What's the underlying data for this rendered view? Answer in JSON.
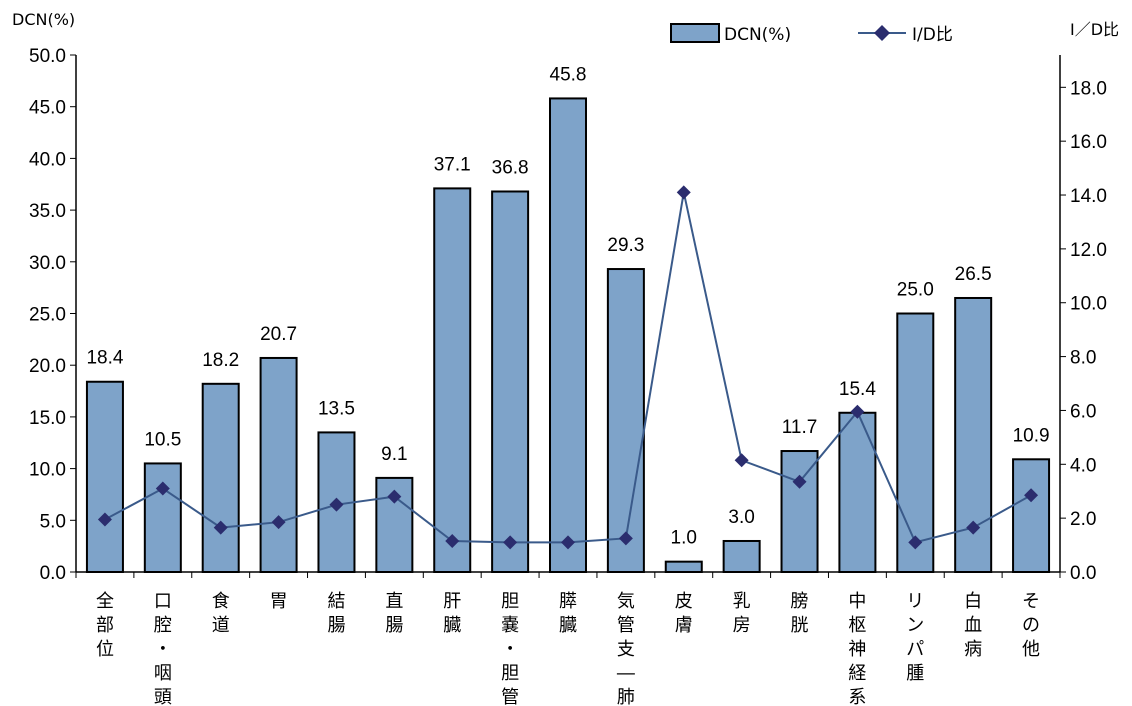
{
  "chart_data": {
    "type": "bar",
    "ylabel": "DCN(%)",
    "y2label": "I／D比",
    "ylim": [
      0,
      50
    ],
    "yticks": [
      "0.0",
      "5.0",
      "10.0",
      "15.0",
      "20.0",
      "25.0",
      "30.0",
      "35.0",
      "40.0",
      "45.0",
      "50.0"
    ],
    "y2lim": [
      0,
      19.2
    ],
    "y2ticks": [
      "0.0",
      "2.0",
      "4.0",
      "6.0",
      "8.0",
      "10.0",
      "12.0",
      "14.0",
      "16.0",
      "18.0"
    ],
    "categories": [
      "全部位",
      "口腔・咽頭",
      "食道",
      "胃",
      "結腸",
      "直腸",
      "肝臓",
      "胆嚢・胆管",
      "膵臓",
      "気管支―肺",
      "皮膚",
      "乳房",
      "膀胱",
      "中枢神経系",
      "リンパ腫",
      "白血病",
      "その他"
    ],
    "series": [
      {
        "name": "DCN(%)",
        "type": "bar",
        "axis": "left",
        "color": "#7ea3c9",
        "values": [
          18.4,
          10.5,
          18.2,
          20.7,
          13.5,
          9.1,
          37.1,
          36.8,
          45.8,
          29.3,
          1.0,
          3.0,
          11.7,
          15.4,
          25.0,
          26.5,
          10.9
        ],
        "labels": [
          "18.4",
          "10.5",
          "18.2",
          "20.7",
          "13.5",
          "9.1",
          "37.1",
          "36.8",
          "45.8",
          "29.3",
          "1.0",
          "3.0",
          "11.7",
          "15.4",
          "25.0",
          "26.5",
          "10.9"
        ]
      },
      {
        "name": "I/D比",
        "type": "line",
        "axis": "right",
        "color": "#3a5a8a",
        "marker_color": "#2b2d6e",
        "values": [
          1.95,
          3.1,
          1.65,
          1.85,
          2.5,
          2.8,
          1.15,
          1.1,
          1.1,
          1.25,
          14.1,
          4.15,
          3.35,
          5.95,
          1.1,
          1.65,
          2.85
        ]
      }
    ],
    "legend": "top",
    "grid": false
  }
}
